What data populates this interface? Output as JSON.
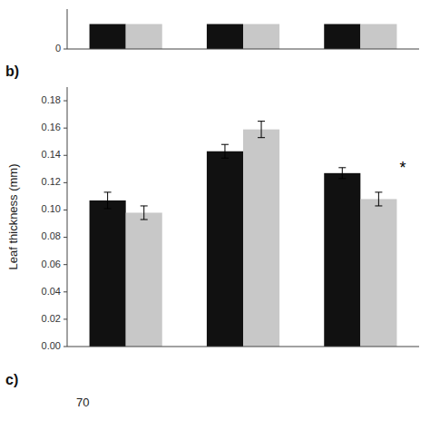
{
  "chart_data": [
    {
      "type": "bar",
      "categories": [
        null,
        null,
        null
      ],
      "series": [
        {
          "color": "#111111",
          "values": [
            1.0,
            1.0,
            1.0
          ]
        },
        {
          "color": "#c8c8c8",
          "values": [
            1.0,
            1.0,
            1.0
          ]
        }
      ],
      "ylim": [
        0,
        1.6
      ],
      "yticks": [
        0
      ]
    },
    {
      "type": "bar",
      "title": "b)",
      "ylabel": "Leaf thickness (mm)",
      "categories": [
        null,
        null,
        null
      ],
      "series": [
        {
          "color": "#111111",
          "values": [
            0.107,
            0.143,
            0.127
          ],
          "errors": [
            0.006,
            0.005,
            0.004
          ]
        },
        {
          "color": "#c8c8c8",
          "values": [
            0.098,
            0.159,
            0.108
          ],
          "errors": [
            0.005,
            0.006,
            0.005
          ]
        }
      ],
      "ylim": [
        0.0,
        0.19
      ],
      "yticks": [
        {
          "value": 0.0,
          "label": "0.00"
        },
        {
          "value": 0.02,
          "label": "0.02"
        },
        {
          "value": 0.04,
          "label": "0.04"
        },
        {
          "value": 0.06,
          "label": "0.06"
        },
        {
          "value": 0.08,
          "label": "0.08"
        },
        {
          "value": 0.1,
          "label": "0.10"
        },
        {
          "value": 0.12,
          "label": "0.12"
        },
        {
          "value": 0.14,
          "label": "0.14"
        },
        {
          "value": 0.16,
          "label": "0.16"
        },
        {
          "value": 0.18,
          "label": "0.18"
        }
      ],
      "annotations": [
        {
          "text": "*",
          "x": 2
        },
        {
          "text": "c)"
        },
        {
          "text": "70"
        }
      ]
    }
  ]
}
